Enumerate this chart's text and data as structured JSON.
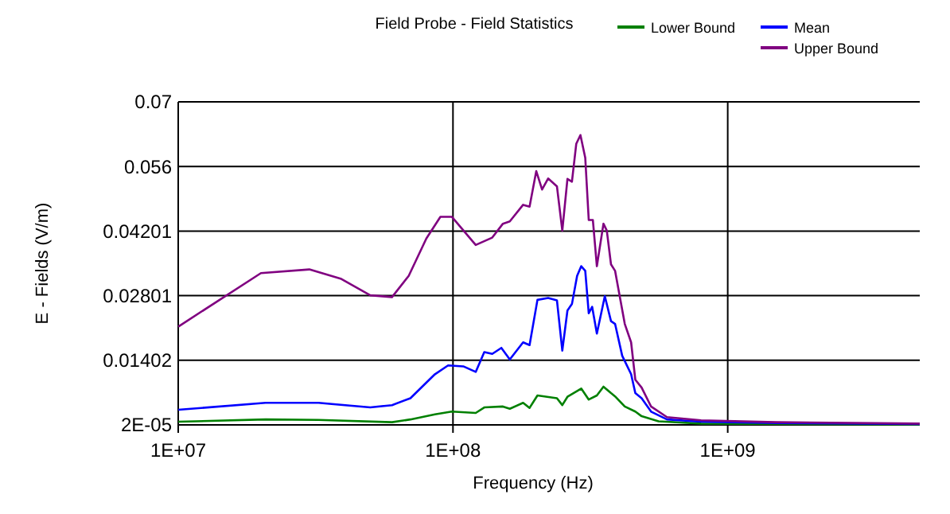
{
  "chart_data": {
    "type": "line",
    "title": "Field Probe - Field Statistics",
    "xlabel": "Frequency (Hz)",
    "ylabel": "E - Fields (V/m)",
    "log": "x",
    "grid": true,
    "legend": "top",
    "line_style": "solid",
    "marker": "none",
    "xlim": [
      10000000,
      5000000000
    ],
    "xticks": [
      {
        "value": 10000000,
        "label": "1E+07"
      },
      {
        "value": 100000000,
        "label": "1E+08"
      },
      {
        "value": 1000000000,
        "label": "1E+09"
      }
    ],
    "ylim": [
      2e-05,
      0.07
    ],
    "yticks": [
      {
        "value": 2e-05,
        "label": "2E-05"
      },
      0.01402,
      0.02801,
      0.04201,
      0.056,
      0.07
    ],
    "series": [
      {
        "name": "Lower Bound",
        "color": "#008000",
        "x": [
          10000000,
          20800000,
          32400000,
          60000000,
          70000000,
          86000000,
          99000000,
          121000000,
          130000000,
          152000000,
          161000000,
          180000000,
          190000000,
          203000000,
          239000000,
          250000000,
          261000000,
          293000000,
          312000000,
          334000000,
          353000000,
          376000000,
          389000000,
          422000000,
          461000000,
          486000000,
          560000000,
          800000000,
          5000000000
        ],
        "values": [
          0.0007,
          0.0012,
          0.0011,
          0.0006,
          0.0012,
          0.0023,
          0.0029,
          0.0026,
          0.0038,
          0.004,
          0.0035,
          0.0048,
          0.0037,
          0.0064,
          0.0058,
          0.0043,
          0.0061,
          0.0079,
          0.0055,
          0.0064,
          0.0083,
          0.0069,
          0.0062,
          0.004,
          0.0029,
          0.0019,
          0.0008,
          0.0003,
          0.0001
        ]
      },
      {
        "name": "Mean",
        "color": "#0000ff",
        "x": [
          10000000,
          20800000,
          32400000,
          50000000,
          60000000,
          70000000,
          86000000,
          96000000,
          109000000,
          121000000,
          130000000,
          139000000,
          150000000,
          161000000,
          180000000,
          190000000,
          203000000,
          222000000,
          239000000,
          250000000,
          261000000,
          271000000,
          283000000,
          293000000,
          303000000,
          312000000,
          321000000,
          334000000,
          357000000,
          376000000,
          389000000,
          413000000,
          445000000,
          461000000,
          486000000,
          526000000,
          601000000,
          800000000,
          1500000000,
          5000000000
        ],
        "values": [
          0.0033,
          0.0048,
          0.0048,
          0.0038,
          0.0043,
          0.0058,
          0.011,
          0.0129,
          0.0127,
          0.0115,
          0.0158,
          0.0154,
          0.0167,
          0.0142,
          0.0179,
          0.0173,
          0.0271,
          0.0275,
          0.027,
          0.0161,
          0.0248,
          0.0262,
          0.0323,
          0.0344,
          0.0334,
          0.0242,
          0.0256,
          0.0198,
          0.0279,
          0.0225,
          0.0219,
          0.015,
          0.011,
          0.0069,
          0.0058,
          0.0029,
          0.0012,
          0.0007,
          0.0004,
          0.0002
        ]
      },
      {
        "name": "Upper Bound",
        "color": "#800080",
        "x": [
          10000000,
          20000000,
          30000000,
          39000000,
          50000000,
          60000000,
          69000000,
          80000000,
          90000000,
          99000000,
          121000000,
          139000000,
          152000000,
          161000000,
          180000000,
          190000000,
          201000000,
          211000000,
          222000000,
          239000000,
          250000000,
          261000000,
          271000000,
          281000000,
          291000000,
          303000000,
          312000000,
          323000000,
          334000000,
          353000000,
          363000000,
          376000000,
          389000000,
          422000000,
          445000000,
          461000000,
          486000000,
          526000000,
          601000000,
          800000000,
          1500000000,
          5000000000
        ],
        "values": [
          0.0213,
          0.0329,
          0.0337,
          0.0317,
          0.0281,
          0.0277,
          0.0323,
          0.0404,
          0.0451,
          0.0451,
          0.039,
          0.0406,
          0.0436,
          0.0441,
          0.0477,
          0.0473,
          0.055,
          0.051,
          0.0534,
          0.0517,
          0.0421,
          0.0533,
          0.0527,
          0.0609,
          0.0628,
          0.0579,
          0.0444,
          0.0444,
          0.0344,
          0.0436,
          0.0421,
          0.0348,
          0.0334,
          0.0219,
          0.0179,
          0.0098,
          0.0081,
          0.004,
          0.0017,
          0.001,
          0.0006,
          0.0003
        ]
      }
    ]
  }
}
